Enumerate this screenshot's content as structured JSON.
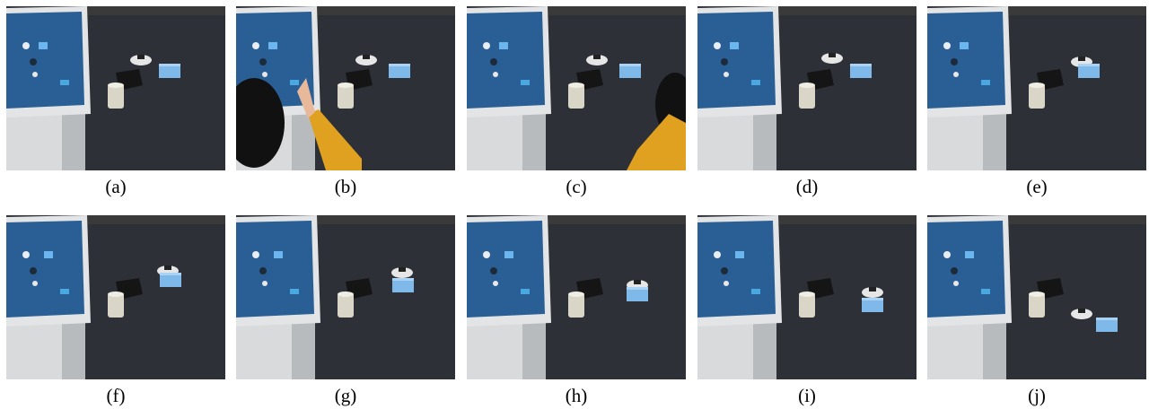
{
  "captions": [
    "(a)",
    "(b)",
    "(c)",
    "(d)",
    "(e)",
    "(f)",
    "(g)",
    "(h)",
    "(i)",
    "(j)"
  ]
}
